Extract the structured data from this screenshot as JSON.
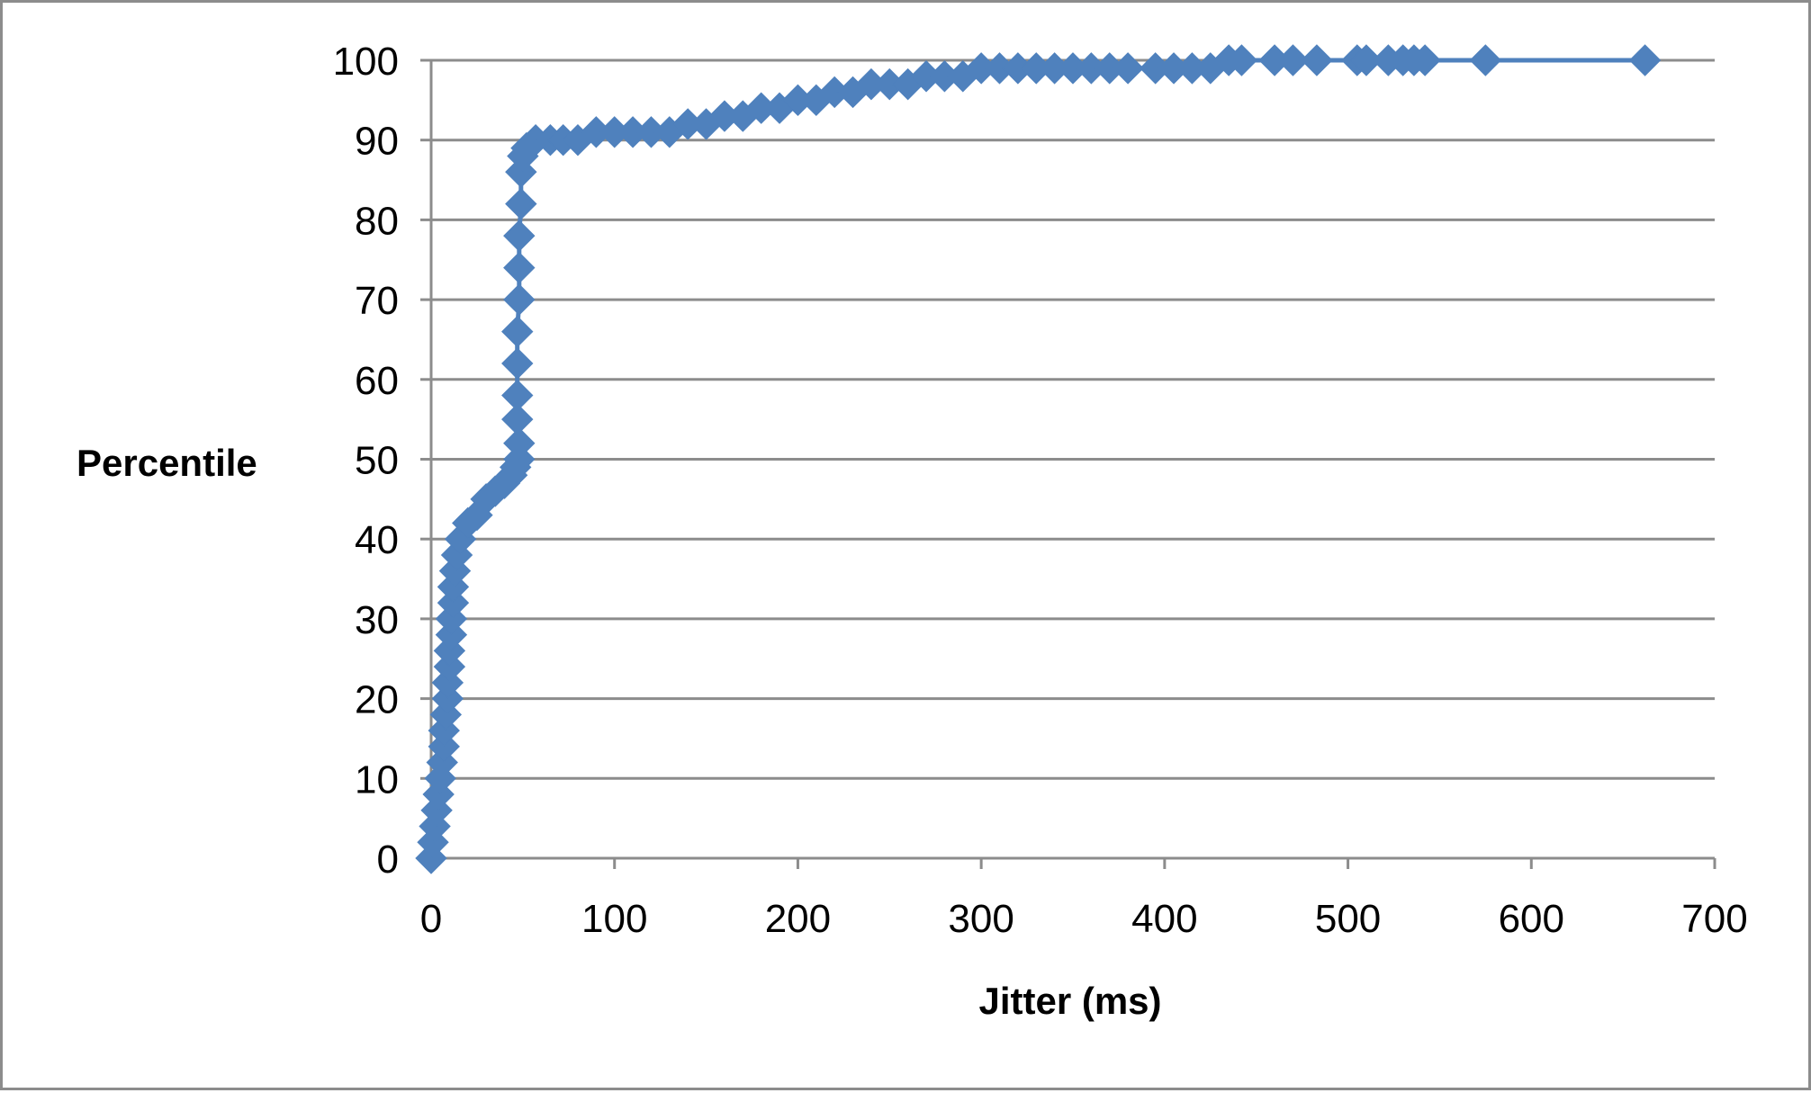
{
  "chart_data": {
    "type": "line",
    "title": "",
    "xlabel": "Jitter (ms)",
    "ylabel": "Percentile",
    "xlim": [
      0,
      700
    ],
    "ylim": [
      0,
      100
    ],
    "x_ticks": [
      "0",
      "100",
      "200",
      "300",
      "400",
      "500",
      "600",
      "700"
    ],
    "y_ticks": [
      "0",
      "10",
      "20",
      "30",
      "40",
      "50",
      "60",
      "70",
      "80",
      "90",
      "100"
    ],
    "grid": "horizontal",
    "legend": "none",
    "marker": "diamond",
    "colors": {
      "series": "#4f81bd",
      "grid": "#8c8c8c",
      "axis": "#8c8c8c"
    },
    "series": [
      {
        "values": [
          [
            0,
            0
          ],
          [
            1,
            2
          ],
          [
            2,
            4
          ],
          [
            3,
            6
          ],
          [
            4,
            8
          ],
          [
            5,
            10
          ],
          [
            6,
            12
          ],
          [
            7,
            14
          ],
          [
            7,
            16
          ],
          [
            8,
            18
          ],
          [
            9,
            20
          ],
          [
            9,
            22
          ],
          [
            10,
            24
          ],
          [
            10,
            26
          ],
          [
            11,
            28
          ],
          [
            11,
            30
          ],
          [
            12,
            32
          ],
          [
            12,
            34
          ],
          [
            13,
            36
          ],
          [
            14,
            38
          ],
          [
            16,
            40
          ],
          [
            20,
            42
          ],
          [
            25,
            43
          ],
          [
            30,
            45
          ],
          [
            35,
            46
          ],
          [
            40,
            47
          ],
          [
            44,
            48
          ],
          [
            46,
            49
          ],
          [
            48,
            50
          ],
          [
            48,
            52
          ],
          [
            47,
            55
          ],
          [
            47,
            58
          ],
          [
            47,
            62
          ],
          [
            47,
            66
          ],
          [
            48,
            70
          ],
          [
            48,
            74
          ],
          [
            48,
            78
          ],
          [
            49,
            82
          ],
          [
            49,
            86
          ],
          [
            50,
            88
          ],
          [
            52,
            89
          ],
          [
            57,
            90
          ],
          [
            65,
            90
          ],
          [
            72,
            90
          ],
          [
            80,
            90
          ],
          [
            90,
            91
          ],
          [
            100,
            91
          ],
          [
            110,
            91
          ],
          [
            120,
            91
          ],
          [
            130,
            91
          ],
          [
            140,
            92
          ],
          [
            150,
            92
          ],
          [
            160,
            93
          ],
          [
            170,
            93
          ],
          [
            180,
            94
          ],
          [
            190,
            94
          ],
          [
            200,
            95
          ],
          [
            210,
            95
          ],
          [
            220,
            96
          ],
          [
            230,
            96
          ],
          [
            240,
            97
          ],
          [
            250,
            97
          ],
          [
            260,
            97
          ],
          [
            270,
            98
          ],
          [
            280,
            98
          ],
          [
            290,
            98
          ],
          [
            300,
            99
          ],
          [
            310,
            99
          ],
          [
            320,
            99
          ],
          [
            330,
            99
          ],
          [
            340,
            99
          ],
          [
            350,
            99
          ],
          [
            360,
            99
          ],
          [
            370,
            99
          ],
          [
            380,
            99
          ],
          [
            395,
            99
          ],
          [
            405,
            99
          ],
          [
            415,
            99
          ],
          [
            425,
            99
          ],
          [
            435,
            100
          ],
          [
            442,
            100
          ],
          [
            460,
            100
          ],
          [
            470,
            100
          ],
          [
            483,
            100
          ],
          [
            505,
            100
          ],
          [
            510,
            100
          ],
          [
            522,
            100
          ],
          [
            530,
            100
          ],
          [
            536,
            100
          ],
          [
            542,
            100
          ],
          [
            575,
            100
          ],
          [
            662,
            100
          ]
        ]
      }
    ]
  }
}
